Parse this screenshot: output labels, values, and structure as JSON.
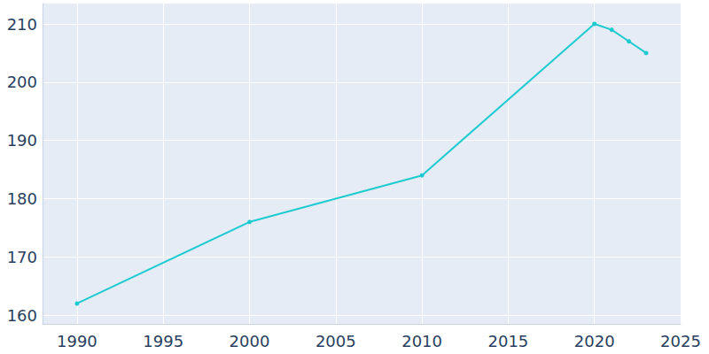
{
  "chart_data": {
    "type": "line",
    "x": [
      1990,
      2000,
      2010,
      2020,
      2021,
      2022,
      2023
    ],
    "values": [
      162,
      176,
      184,
      210,
      209,
      207,
      205
    ],
    "color": "#1ecbd0",
    "marker": "circle",
    "xlim": [
      1988,
      2025
    ],
    "ylim": [
      158.5,
      213.5
    ],
    "xticks": [
      1990,
      1995,
      2000,
      2005,
      2010,
      2015,
      2020,
      2025
    ],
    "yticks": [
      160,
      170,
      180,
      190,
      200,
      210
    ],
    "grid": true
  }
}
